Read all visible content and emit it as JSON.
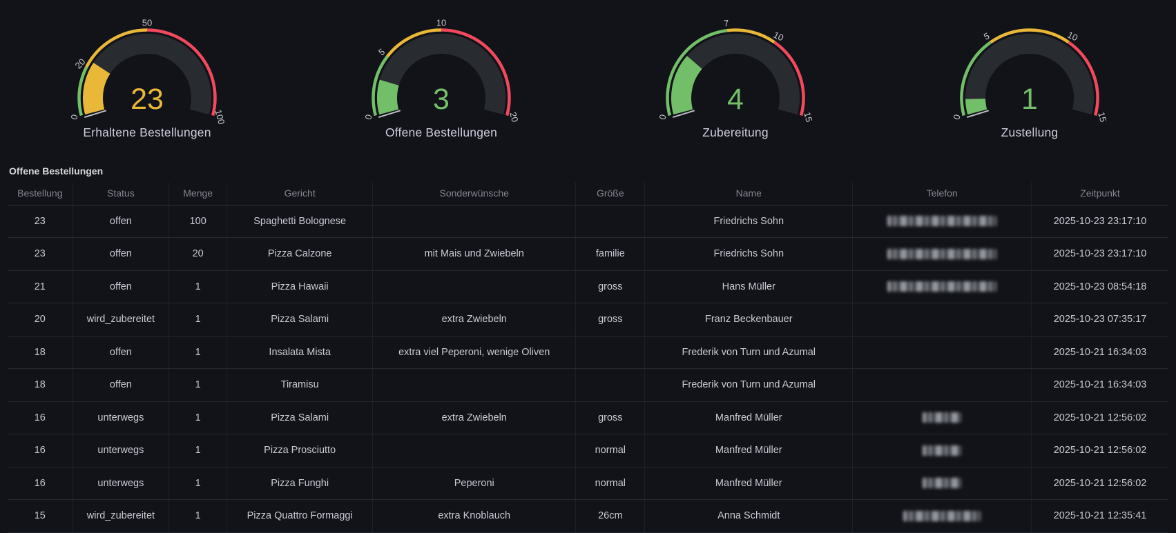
{
  "colors": {
    "background": "#111318",
    "green": "#73BF69",
    "yellow": "#EAB839",
    "red": "#F2495C",
    "gauge_track": "#282B30",
    "tick_label": "#C9CAD1",
    "text_primary": "#CCCCDC"
  },
  "chart_data": {
    "gauges": [
      {
        "type": "gauge",
        "title": "Erhaltene Bestellungen",
        "value": 23,
        "value_display": "23",
        "min": 0,
        "max": 100,
        "value_color": "#EAB839",
        "thresholds": [
          {
            "from": 0,
            "to": 20,
            "color": "#73BF69"
          },
          {
            "from": 20,
            "to": 50,
            "color": "#EAB839"
          },
          {
            "from": 50,
            "to": 100,
            "color": "#F2495C"
          }
        ],
        "tick_labels": [
          "0",
          "20",
          "50",
          "100"
        ],
        "tick_values": [
          0,
          20,
          50,
          100
        ]
      },
      {
        "type": "gauge",
        "title": "Offene Bestellungen",
        "value": 3,
        "value_display": "3",
        "min": 0,
        "max": 20,
        "value_color": "#73BF69",
        "thresholds": [
          {
            "from": 0,
            "to": 5,
            "color": "#73BF69"
          },
          {
            "from": 5,
            "to": 10,
            "color": "#EAB839"
          },
          {
            "from": 10,
            "to": 20,
            "color": "#F2495C"
          }
        ],
        "tick_labels": [
          "0",
          "5",
          "10",
          "20"
        ],
        "tick_values": [
          0,
          5,
          10,
          20
        ]
      },
      {
        "type": "gauge",
        "title": "Zubereitung",
        "value": 4,
        "value_display": "4",
        "min": 0,
        "max": 15,
        "value_color": "#73BF69",
        "thresholds": [
          {
            "from": 0,
            "to": 7,
            "color": "#73BF69"
          },
          {
            "from": 7,
            "to": 10,
            "color": "#EAB839"
          },
          {
            "from": 10,
            "to": 15,
            "color": "#F2495C"
          }
        ],
        "tick_labels": [
          "0",
          "7",
          "10",
          "15"
        ],
        "tick_values": [
          0,
          7,
          10,
          15
        ]
      },
      {
        "type": "gauge",
        "title": "Zustellung",
        "value": 1,
        "value_display": "1",
        "min": 0,
        "max": 15,
        "value_color": "#73BF69",
        "thresholds": [
          {
            "from": 0,
            "to": 5,
            "color": "#73BF69"
          },
          {
            "from": 5,
            "to": 10,
            "color": "#EAB839"
          },
          {
            "from": 10,
            "to": 15,
            "color": "#F2495C"
          }
        ],
        "tick_labels": [
          "0",
          "5",
          "10",
          "15"
        ],
        "tick_values": [
          0,
          5,
          10,
          15
        ]
      }
    ],
    "table": {
      "type": "table",
      "title": "Offene Bestellungen",
      "columns": [
        "Bestellung",
        "Status",
        "Menge",
        "Gericht",
        "Sonderwünsche",
        "Größe",
        "Name",
        "Telefon",
        "Zeitpunkt"
      ],
      "column_keys": [
        "bestellung",
        "status",
        "menge",
        "gericht",
        "sonderwuensche",
        "groesse",
        "name",
        "telefon",
        "zeitpunkt"
      ],
      "rows": [
        [
          "23",
          "offen",
          "100",
          "Spaghetti Bolognese",
          "",
          "",
          "Friedrichs Sohn",
          {
            "masked": "long"
          },
          "2025-10-23 23:17:10"
        ],
        [
          "23",
          "offen",
          "20",
          "Pizza Calzone",
          "mit Mais und Zwiebeln",
          "familie",
          "Friedrichs Sohn",
          {
            "masked": "long"
          },
          "2025-10-23 23:17:10"
        ],
        [
          "21",
          "offen",
          "1",
          "Pizza Hawaii",
          "",
          "gross",
          "Hans Müller",
          {
            "masked": "long"
          },
          "2025-10-23 08:54:18"
        ],
        [
          "20",
          "wird_zubereitet",
          "1",
          "Pizza Salami",
          "extra Zwiebeln",
          "gross",
          "Franz Beckenbauer",
          "",
          "2025-10-23 07:35:17"
        ],
        [
          "18",
          "offen",
          "1",
          "Insalata Mista",
          "extra viel Peperoni, wenige Oliven",
          "",
          "Frederik von Turn und Azumal",
          "",
          "2025-10-21 16:34:03"
        ],
        [
          "18",
          "offen",
          "1",
          "Tiramisu",
          "",
          "",
          "Frederik von Turn und Azumal",
          "",
          "2025-10-21 16:34:03"
        ],
        [
          "16",
          "unterwegs",
          "1",
          "Pizza Salami",
          "extra Zwiebeln",
          "gross",
          "Manfred Müller",
          {
            "masked": "short"
          },
          "2025-10-21 12:56:02"
        ],
        [
          "16",
          "unterwegs",
          "1",
          "Pizza Prosciutto",
          "",
          "normal",
          "Manfred Müller",
          {
            "masked": "short"
          },
          "2025-10-21 12:56:02"
        ],
        [
          "16",
          "unterwegs",
          "1",
          "Pizza Funghi",
          "Peperoni",
          "normal",
          "Manfred Müller",
          {
            "masked": "short"
          },
          "2025-10-21 12:56:02"
        ],
        [
          "15",
          "wird_zubereitet",
          "1",
          "Pizza Quattro Formaggi",
          "extra Knoblauch",
          "26cm",
          "Anna Schmidt",
          {
            "masked": "medium"
          },
          "2025-10-21 12:35:41"
        ]
      ]
    }
  }
}
